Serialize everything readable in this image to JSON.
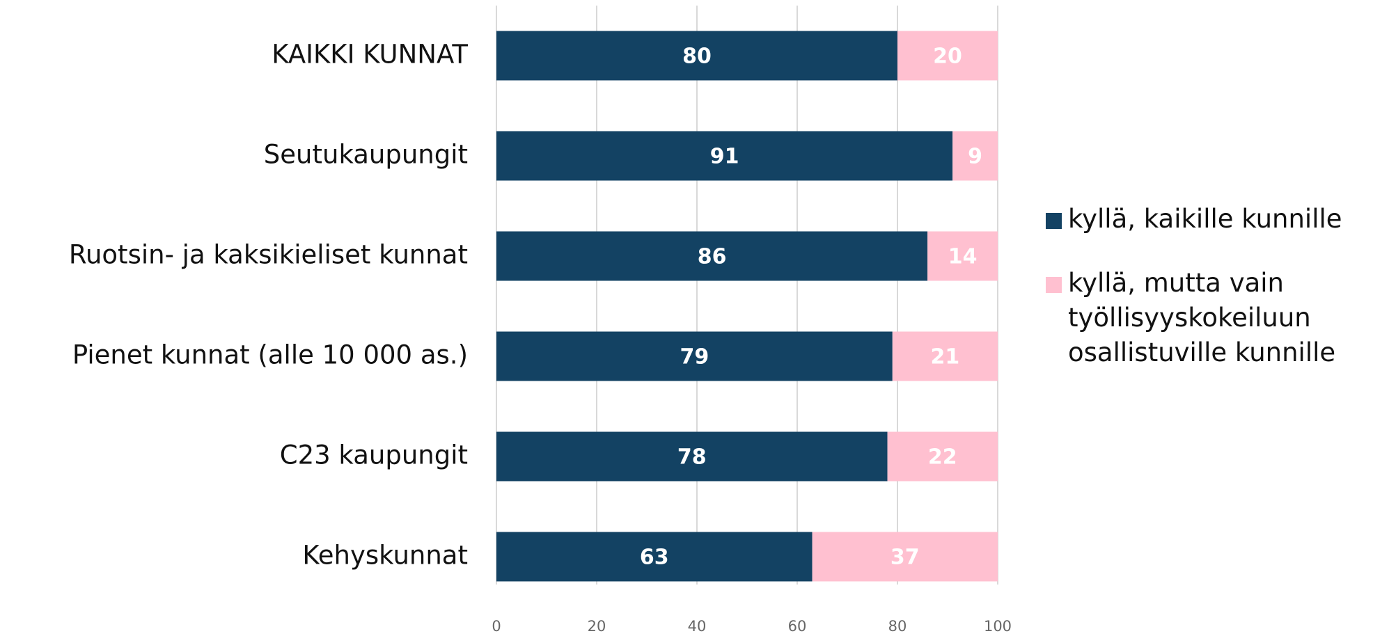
{
  "chart_data": {
    "type": "stacked-bar-horizontal",
    "categories": [
      "KAIKKI KUNNAT",
      "Seutukaupungit",
      "Ruotsin- ja kaksikieliset kunnat",
      "Pienet kunnat (alle 10 000 as.)",
      "C23 kaupungit",
      "Kehyskunnat"
    ],
    "series": [
      {
        "name": "kyllä, kaikille kunnille",
        "color": "#134263",
        "values": [
          80,
          91,
          86,
          79,
          78,
          63
        ]
      },
      {
        "name": "kyllä, mutta vain työllisyyskokeiluun osallistuville kunnille",
        "color": "#ffc0d0",
        "values": [
          20,
          9,
          14,
          21,
          22,
          37
        ]
      }
    ],
    "xlim": [
      0,
      100
    ],
    "xticks": [
      0,
      20,
      40,
      60,
      80,
      100
    ],
    "grid": true,
    "legend": "right"
  }
}
